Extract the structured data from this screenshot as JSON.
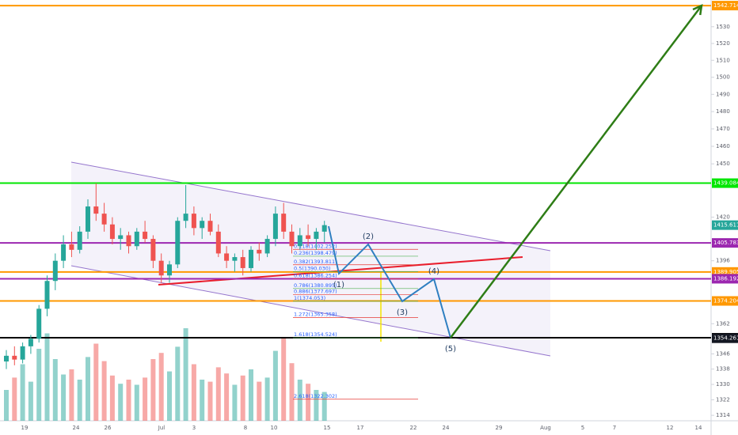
{
  "chart_data": {
    "type": "candlestick",
    "log_scale": true,
    "ylim": [
      1311.2,
      1546.1
    ],
    "yticks": [
      1314,
      1322,
      1330,
      1338,
      1346,
      1362,
      1396,
      1420,
      1450,
      1460,
      1470,
      1480,
      1490,
      1500,
      1510,
      1520,
      1530
    ],
    "x_labels": [
      "19",
      "24",
      "26",
      "Jul",
      "3",
      "8",
      "10",
      "15",
      "17",
      "22",
      "24",
      "29",
      "Aug",
      "5",
      "7",
      "12",
      "14"
    ],
    "up_color": "#26a69a",
    "down_color": "#ef5350",
    "candles": {
      "open": [
        1342,
        1345,
        1343,
        1350,
        1354,
        1370,
        1385,
        1396,
        1405,
        1402,
        1412,
        1426,
        1422,
        1416,
        1408,
        1410,
        1404,
        1412,
        1408,
        1396,
        1388,
        1394,
        1418,
        1422,
        1414,
        1418,
        1412,
        1400,
        1396,
        1398,
        1392,
        1402,
        1400,
        1408,
        1422,
        1412,
        1404,
        1410,
        1408,
        1412
      ],
      "high": [
        1348,
        1350,
        1352,
        1356,
        1372,
        1388,
        1400,
        1410,
        1412,
        1415,
        1430,
        1439,
        1428,
        1420,
        1414,
        1412,
        1414,
        1418,
        1410,
        1400,
        1396,
        1420,
        1438,
        1426,
        1420,
        1422,
        1416,
        1404,
        1400,
        1402,
        1404,
        1406,
        1410,
        1426,
        1428,
        1416,
        1414,
        1416,
        1414,
        1418
      ],
      "low": [
        1338,
        1340,
        1341,
        1346,
        1352,
        1366,
        1380,
        1392,
        1398,
        1400,
        1408,
        1418,
        1412,
        1405,
        1402,
        1400,
        1402,
        1406,
        1392,
        1384,
        1384,
        1392,
        1414,
        1410,
        1408,
        1410,
        1398,
        1392,
        1390,
        1388,
        1390,
        1396,
        1398,
        1404,
        1408,
        1400,
        1402,
        1404,
        1402,
        1406
      ],
      "close": [
        1345,
        1343,
        1350,
        1354,
        1370,
        1385,
        1396,
        1405,
        1402,
        1412,
        1426,
        1422,
        1416,
        1408,
        1410,
        1404,
        1412,
        1408,
        1396,
        1388,
        1394,
        1418,
        1422,
        1414,
        1418,
        1412,
        1400,
        1396,
        1398,
        1392,
        1402,
        1400,
        1408,
        1422,
        1412,
        1404,
        1410,
        1408,
        1412,
        1415.611
      ],
      "volume": [
        30,
        42,
        55,
        38,
        70,
        85,
        60,
        45,
        50,
        40,
        62,
        75,
        58,
        44,
        36,
        40,
        35,
        42,
        60,
        66,
        48,
        72,
        90,
        55,
        40,
        38,
        52,
        46,
        35,
        44,
        50,
        38,
        42,
        68,
        80,
        56,
        40,
        36,
        30,
        28
      ]
    },
    "price_lines": [
      {
        "value": 1542.714,
        "color": "#ff9800"
      },
      {
        "value": 1439.084,
        "color": "#00e600"
      },
      {
        "value": 1405.783,
        "color": "#9c27b0"
      },
      {
        "value": 1389.905,
        "color": "#ff9800"
      },
      {
        "value": 1386.192,
        "color": "#9c27b0"
      },
      {
        "value": 1374.204,
        "color": "#ff9800"
      },
      {
        "value": 1354.537,
        "color": "#000000"
      }
    ],
    "price_tags": [
      {
        "value": 1415.611,
        "color": "#26a69a"
      },
      {
        "value": 1354.261,
        "color": "#131722"
      }
    ],
    "fib_levels": [
      {
        "label": "0.118(1402.252)",
        "value": 1402.252
      },
      {
        "label": "0.236(1398.479)",
        "value": 1398.479
      },
      {
        "label": "0.382(1393.811)",
        "value": 1393.811
      },
      {
        "label": "0.5(1390.030)",
        "value": 1390.03
      },
      {
        "label": "0.618(1386.254)",
        "value": 1386.254
      },
      {
        "label": "0.786(1380.895)",
        "value": 1380.895
      },
      {
        "label": "0.886(1377.697)",
        "value": 1377.697
      },
      {
        "label": "1(1374.053)",
        "value": 1374.053
      },
      {
        "label": "1.272(1365.358)",
        "value": 1365.358
      },
      {
        "label": "1.618(1354.524)",
        "value": 1354.524
      },
      {
        "label": "2.618(1322.302)",
        "value": 1322.302
      }
    ],
    "wave": {
      "values": [
        1415,
        1389,
        1405,
        1374,
        1386,
        1354.5
      ],
      "labels": [
        null,
        "(1)",
        "(2)",
        "(3)",
        "(4)",
        "(5)"
      ],
      "color": "#2f7fc1"
    },
    "arrow": {
      "values": [
        1354.537,
        1542.714
      ],
      "color": "#2e7d16"
    }
  }
}
